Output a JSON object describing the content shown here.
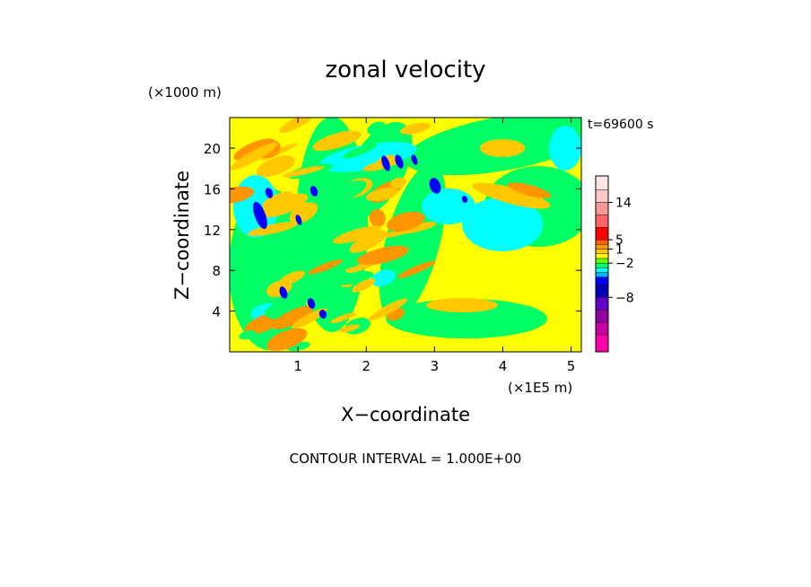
{
  "chart_data": {
    "type": "heatmap",
    "title": "zonal velocity",
    "xlabel": "X−coordinate",
    "ylabel": "Z−coordinate",
    "x_unit": "(×1E5 m)",
    "y_unit": "(×1000 m)",
    "time_label": "t=69600 s",
    "footer": "CONTOUR INTERVAL = 1.000E+00",
    "xlim": [
      0,
      5.15
    ],
    "ylim": [
      0,
      23
    ],
    "x_ticks": [
      "1",
      "2",
      "3",
      "4",
      "5"
    ],
    "y_ticks": [
      "4",
      "8",
      "12",
      "16",
      "20"
    ],
    "colorbar": {
      "tick_labels": [
        "14",
        "5",
        "1",
        "−2",
        "−8"
      ],
      "colors": [
        "#ff00aa",
        "#c800a0",
        "#9600a0",
        "#6400c8",
        "#0000b4",
        "#0000ff",
        "#00b4ff",
        "#00ffff",
        "#00ff64",
        "#64ff00",
        "#ffff00",
        "#ffc800",
        "#ff9600",
        "#ff6400",
        "#ff0000",
        "#ff6464",
        "#ff9696",
        "#ffc8c8",
        "#ffe6e6"
      ]
    },
    "field_colors": {
      "background": "#ffff00",
      "weak_negative": "#00ff64",
      "negative": "#00ffff",
      "strong_negative": "#0000ff",
      "weak_positive": "#ffc800",
      "positive": "#ff9600"
    }
  }
}
